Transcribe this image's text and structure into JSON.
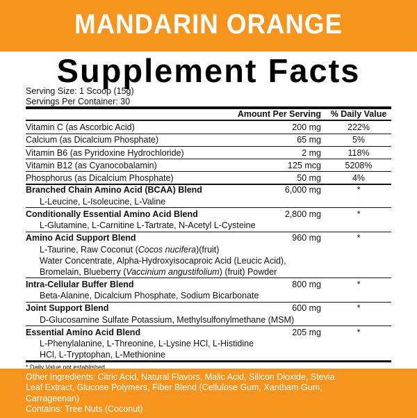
{
  "header": {
    "title": "MANDARIN ORANGE"
  },
  "panel": {
    "title": "Supplement Facts",
    "serving_size": "Serving Size: 1 Scoop (15g)",
    "servings_per_container": "Servings Per Container: 30",
    "columns": [
      "Amount Per Serving",
      "% Daily Value"
    ],
    "vitamins": [
      {
        "name": "Vitamin C (as Ascorbic Acid)",
        "amount": "200 mg",
        "dv": "222%"
      },
      {
        "name": "Calcium (as Dicalcium Phosphate)",
        "amount": "65 mg",
        "dv": "5%"
      },
      {
        "name": "Vitamin B6 (as Pyridoxine Hydrochloride)",
        "amount": "2 mg",
        "dv": "118%"
      },
      {
        "name": "Vitamin B12 (as Cyanocobalamin)",
        "amount": "125 mcg",
        "dv": "5208%"
      },
      {
        "name": "Phosphorus (as Dicalcium Phosphate)",
        "amount": "50 mg",
        "dv": "4%"
      }
    ],
    "blends": [
      {
        "name": "Branched Chain Amino Acid (BCAA) Blend",
        "amount": "6,000 mg",
        "dv": "*",
        "ingredients": [
          [
            "L-Leucine, L-Isoleucine, L-Valine"
          ]
        ]
      },
      {
        "name": "Conditionally Essential Amino Acid Blend",
        "amount": "2,800 mg",
        "dv": "*",
        "ingredients": [
          [
            "L-Glutamine, L-Carnitine L-Tartrate, N-Acetyl L-Cysteine"
          ]
        ]
      },
      {
        "name": "Amino Acid Support Blend",
        "amount": "960 mg",
        "dv": "*",
        "ingredients": [
          [
            "L-Taurine, Raw Coconut (",
            "Cocos nucifera",
            ")(fruit)"
          ],
          [
            "Water Concentrate, Alpha-Hydroxyisocaproic Acid (Leucic Acid),"
          ],
          [
            "Bromelain, Blueberry (",
            "Vaccinium angustifolium",
            ") (fruit) Powder"
          ]
        ]
      },
      {
        "name": "Intra-Cellular Buffer Blend",
        "amount": "800 mg",
        "dv": "*",
        "ingredients": [
          [
            "Beta-Alanine, Dicalcium Phosphate, Sodium Bicarbonate"
          ]
        ]
      },
      {
        "name": "Joint Support Blend",
        "amount": "600 mg",
        "dv": "*",
        "ingredients": [
          [
            "D-Glucosamine Sulfate Potassium, Methylsulfonylmethane (MSM)"
          ]
        ]
      },
      {
        "name": "Essential Amino Acid Blend",
        "amount": "205 mg",
        "dv": "*",
        "ingredients": [
          [
            "L-Phenylalanine, L-Threonine, L-Lysine HCl, L-Histidine"
          ],
          [
            "HCl, L-Tryptophan, L-Methionine"
          ]
        ]
      }
    ],
    "footnote": "* Daily Value not established"
  },
  "footer": {
    "other_ingredients": [
      "Other Ingredients:  Citric Acid, Natural Flavors, Malic Acid, Silicon Dioxide, Stevia",
      "Leaf Extract, Glucose Polymers, Fiber Blend (Cellulose Gum, Xantham Gum,",
      "Carrageenan)"
    ],
    "contains": "Contains:  Tree Nuts (Coconut)"
  }
}
